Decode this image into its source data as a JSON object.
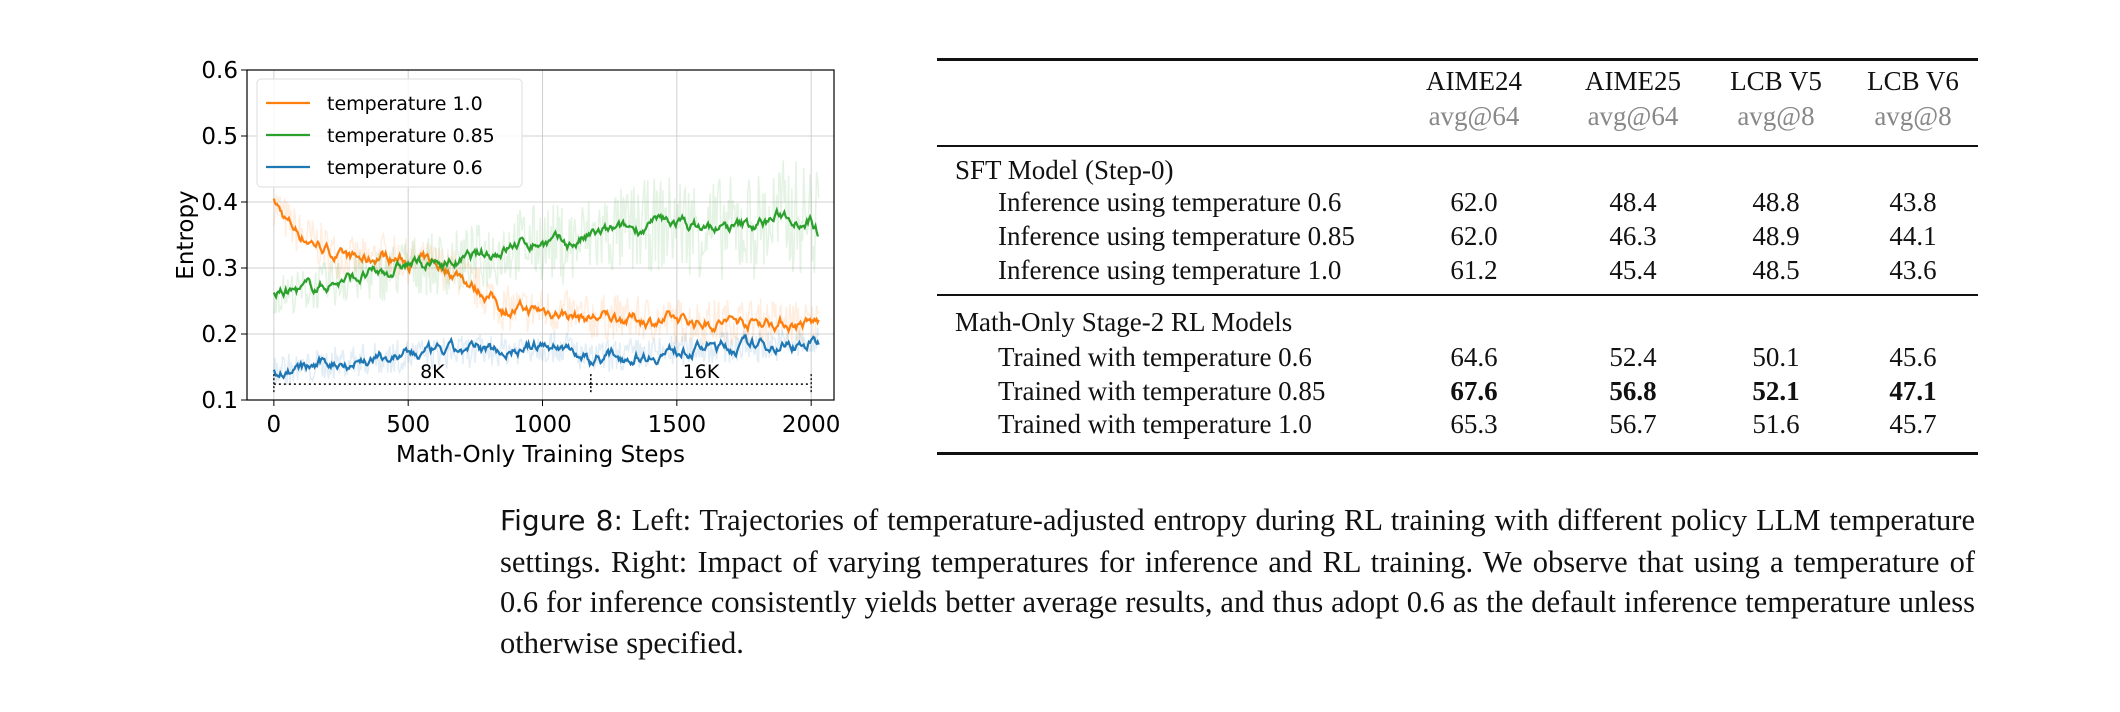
{
  "chart_data": {
    "type": "line",
    "xlabel": "Math-Only Training Steps",
    "ylabel": "Entropy",
    "xlim": [
      -100,
      2085
    ],
    "ylim": [
      0.1,
      0.6
    ],
    "xticks": [
      0,
      500,
      1000,
      1500,
      2000
    ],
    "yticks": [
      0.1,
      0.2,
      0.3,
      0.4,
      0.5,
      0.6
    ],
    "grid": true,
    "legend_position": "top-left",
    "series": [
      {
        "name": "temperature 1.0",
        "color": "#ff7f0e",
        "x": [
          0,
          50,
          100,
          150,
          250,
          350,
          400,
          500,
          600,
          700,
          750,
          800,
          850,
          950,
          1050,
          1150,
          1300,
          1450,
          1600,
          1800,
          2000,
          2030
        ],
        "y": [
          0.4,
          0.37,
          0.35,
          0.34,
          0.315,
          0.31,
          0.32,
          0.31,
          0.305,
          0.29,
          0.27,
          0.26,
          0.24,
          0.235,
          0.235,
          0.225,
          0.225,
          0.22,
          0.218,
          0.22,
          0.215,
          0.218
        ]
      },
      {
        "name": "temperature 0.85",
        "color": "#2ca02c",
        "x": [
          0,
          100,
          200,
          300,
          400,
          500,
          600,
          700,
          800,
          900,
          1000,
          1100,
          1200,
          1300,
          1400,
          1500,
          1600,
          1700,
          1800,
          1900,
          2000,
          2030
        ],
        "y": [
          0.26,
          0.265,
          0.275,
          0.285,
          0.29,
          0.305,
          0.305,
          0.31,
          0.32,
          0.335,
          0.34,
          0.335,
          0.35,
          0.355,
          0.365,
          0.37,
          0.36,
          0.36,
          0.365,
          0.38,
          0.375,
          0.355
        ]
      },
      {
        "name": "temperature 0.6",
        "color": "#1f77b4",
        "x": [
          0,
          100,
          200,
          300,
          400,
          500,
          600,
          700,
          800,
          900,
          1000,
          1100,
          1180,
          1200,
          1300,
          1400,
          1500,
          1600,
          1700,
          1800,
          1900,
          2030
        ],
        "y": [
          0.148,
          0.145,
          0.155,
          0.16,
          0.163,
          0.168,
          0.17,
          0.172,
          0.175,
          0.178,
          0.182,
          0.18,
          0.158,
          0.165,
          0.168,
          0.17,
          0.175,
          0.18,
          0.18,
          0.182,
          0.185,
          0.185
        ]
      }
    ],
    "annotations": [
      {
        "text": "8K",
        "x_start": 0,
        "x_end": 1180
      },
      {
        "text": "16K",
        "x_start": 1180,
        "x_end": 2000
      }
    ]
  },
  "table": {
    "columns": [
      {
        "name": "AIME24",
        "metric": "avg@64"
      },
      {
        "name": "AIME25",
        "metric": "avg@64"
      },
      {
        "name": "LCB V5",
        "metric": "avg@8"
      },
      {
        "name": "LCB V6",
        "metric": "avg@8"
      }
    ],
    "groups": [
      {
        "title": "SFT Model (Step-0)",
        "rows": [
          {
            "label": "Inference using temperature 0.6",
            "values": [
              "62.0",
              "48.4",
              "48.8",
              "43.8"
            ],
            "bold": false
          },
          {
            "label": "Inference using temperature 0.85",
            "values": [
              "62.0",
              "46.3",
              "48.9",
              "44.1"
            ],
            "bold": false
          },
          {
            "label": "Inference using temperature 1.0",
            "values": [
              "61.2",
              "45.4",
              "48.5",
              "43.6"
            ],
            "bold": false
          }
        ]
      },
      {
        "title": "Math-Only Stage-2 RL Models",
        "rows": [
          {
            "label": "Trained with temperature 0.6",
            "values": [
              "64.6",
              "52.4",
              "50.1",
              "45.6"
            ],
            "bold": false
          },
          {
            "label": "Trained with temperature 0.85",
            "values": [
              "67.6",
              "56.8",
              "52.1",
              "47.1"
            ],
            "bold": true
          },
          {
            "label": "Trained with temperature 1.0",
            "values": [
              "65.3",
              "56.7",
              "51.6",
              "45.7"
            ],
            "bold": false
          }
        ]
      }
    ]
  },
  "caption": {
    "label": "Figure 8:",
    "text": "Left: Trajectories of temperature-adjusted entropy during RL training with different policy LLM temperature settings. Right: Impact of varying temperatures for inference and RL training. We observe that using a temperature of 0.6 for inference consistently yields better average results, and thus adopt 0.6 as the default inference temperature unless otherwise specified."
  }
}
